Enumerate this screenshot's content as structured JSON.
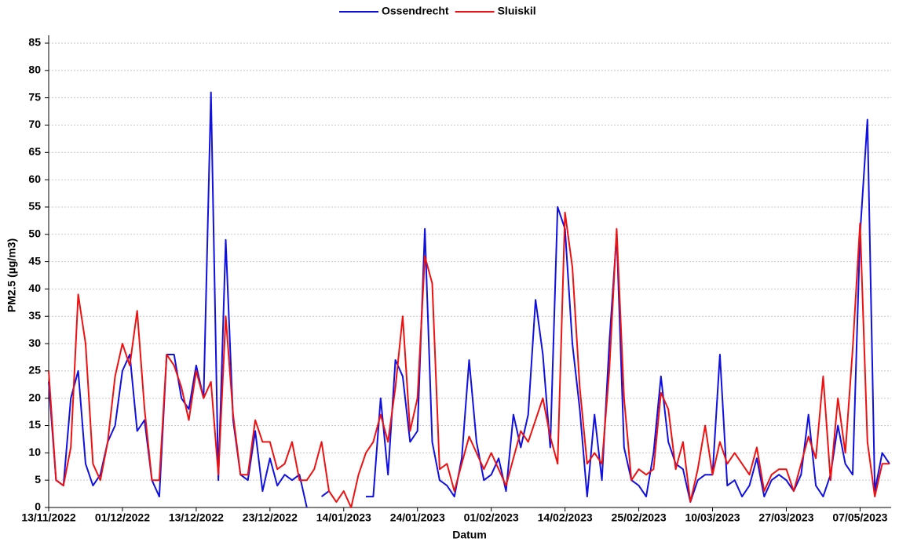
{
  "chart_data": {
    "type": "line",
    "y_label": "PM2.5 (µg/m3)",
    "x_label": "Datum",
    "categories": [
      "13/11/2022",
      null,
      null,
      null,
      null,
      null,
      null,
      null,
      null,
      null,
      "01/12/2022",
      null,
      null,
      null,
      null,
      null,
      null,
      null,
      null,
      null,
      "13/12/2022",
      null,
      null,
      null,
      null,
      null,
      null,
      null,
      null,
      null,
      "23/12/2022",
      null,
      null,
      null,
      null,
      null,
      null,
      null,
      null,
      null,
      "14/01/2023",
      null,
      null,
      null,
      null,
      null,
      null,
      null,
      null,
      null,
      "24/01/2023",
      null,
      null,
      null,
      null,
      null,
      null,
      null,
      null,
      null,
      "01/02/2023",
      null,
      null,
      null,
      null,
      null,
      null,
      null,
      null,
      null,
      "14/02/2023",
      null,
      null,
      null,
      null,
      null,
      null,
      null,
      null,
      null,
      "25/02/2023",
      null,
      null,
      null,
      null,
      null,
      null,
      null,
      null,
      null,
      "10/03/2023",
      null,
      null,
      null,
      null,
      null,
      null,
      null,
      null,
      null,
      "27/03/2023",
      null,
      null,
      null,
      null,
      null,
      null,
      null,
      null,
      null,
      "07/05/2023",
      null,
      null,
      null,
      null
    ],
    "series": [
      {
        "name": "Ossendrecht",
        "color": "#1010e0",
        "values": [
          23,
          5,
          4,
          20,
          25,
          8,
          4,
          6,
          12,
          15,
          25,
          28,
          14,
          16,
          5,
          2,
          28,
          28,
          20,
          18,
          26,
          20,
          76,
          5,
          49,
          16,
          6,
          5,
          14,
          3,
          9,
          4,
          6,
          5,
          6,
          0,
          null,
          2,
          3,
          null,
          null,
          3,
          null,
          2,
          2,
          20,
          6,
          27,
          24,
          12,
          14,
          51,
          12,
          5,
          4,
          2,
          9,
          27,
          12,
          5,
          6,
          9,
          3,
          17,
          11,
          17,
          38,
          28,
          11,
          55,
          51,
          30,
          18,
          2,
          17,
          5,
          30,
          50,
          11,
          5,
          4,
          2,
          10,
          24,
          12,
          8,
          7,
          1,
          5,
          6,
          6,
          28,
          4,
          5,
          2,
          4,
          9,
          2,
          5,
          6,
          5,
          3,
          6,
          17,
          4,
          2,
          6,
          15,
          8,
          6,
          50,
          71,
          3,
          10,
          8
        ]
      },
      {
        "name": "Sluiskil",
        "color": "#ee1111",
        "values": [
          25,
          5,
          4,
          11,
          39,
          30,
          8,
          5,
          12,
          24,
          30,
          26,
          36,
          18,
          5,
          5,
          28,
          26,
          22,
          16,
          25,
          20,
          23,
          6,
          35,
          17,
          6,
          6,
          16,
          12,
          12,
          7,
          8,
          12,
          5,
          5,
          7,
          12,
          3,
          1,
          3,
          0,
          6,
          10,
          12,
          17,
          12,
          22,
          35,
          14,
          20,
          46,
          41,
          7,
          8,
          3,
          8,
          13,
          10,
          7,
          10,
          7,
          4,
          9,
          14,
          12,
          16,
          20,
          13,
          8,
          54,
          44,
          22,
          8,
          10,
          8,
          25,
          51,
          20,
          5,
          7,
          6,
          7,
          21,
          18,
          7,
          12,
          1,
          7,
          15,
          6,
          12,
          8,
          10,
          8,
          6,
          11,
          3,
          6,
          7,
          7,
          3,
          8,
          13,
          9,
          24,
          5,
          20,
          10,
          29,
          52,
          12,
          2,
          8,
          8
        ]
      }
    ],
    "ylim": [
      0,
      85
    ],
    "yticks": [
      0,
      5,
      10,
      15,
      20,
      25,
      30,
      35,
      40,
      45,
      50,
      55,
      60,
      65,
      70,
      75,
      80,
      85
    ],
    "grid": true,
    "legend": "top"
  }
}
